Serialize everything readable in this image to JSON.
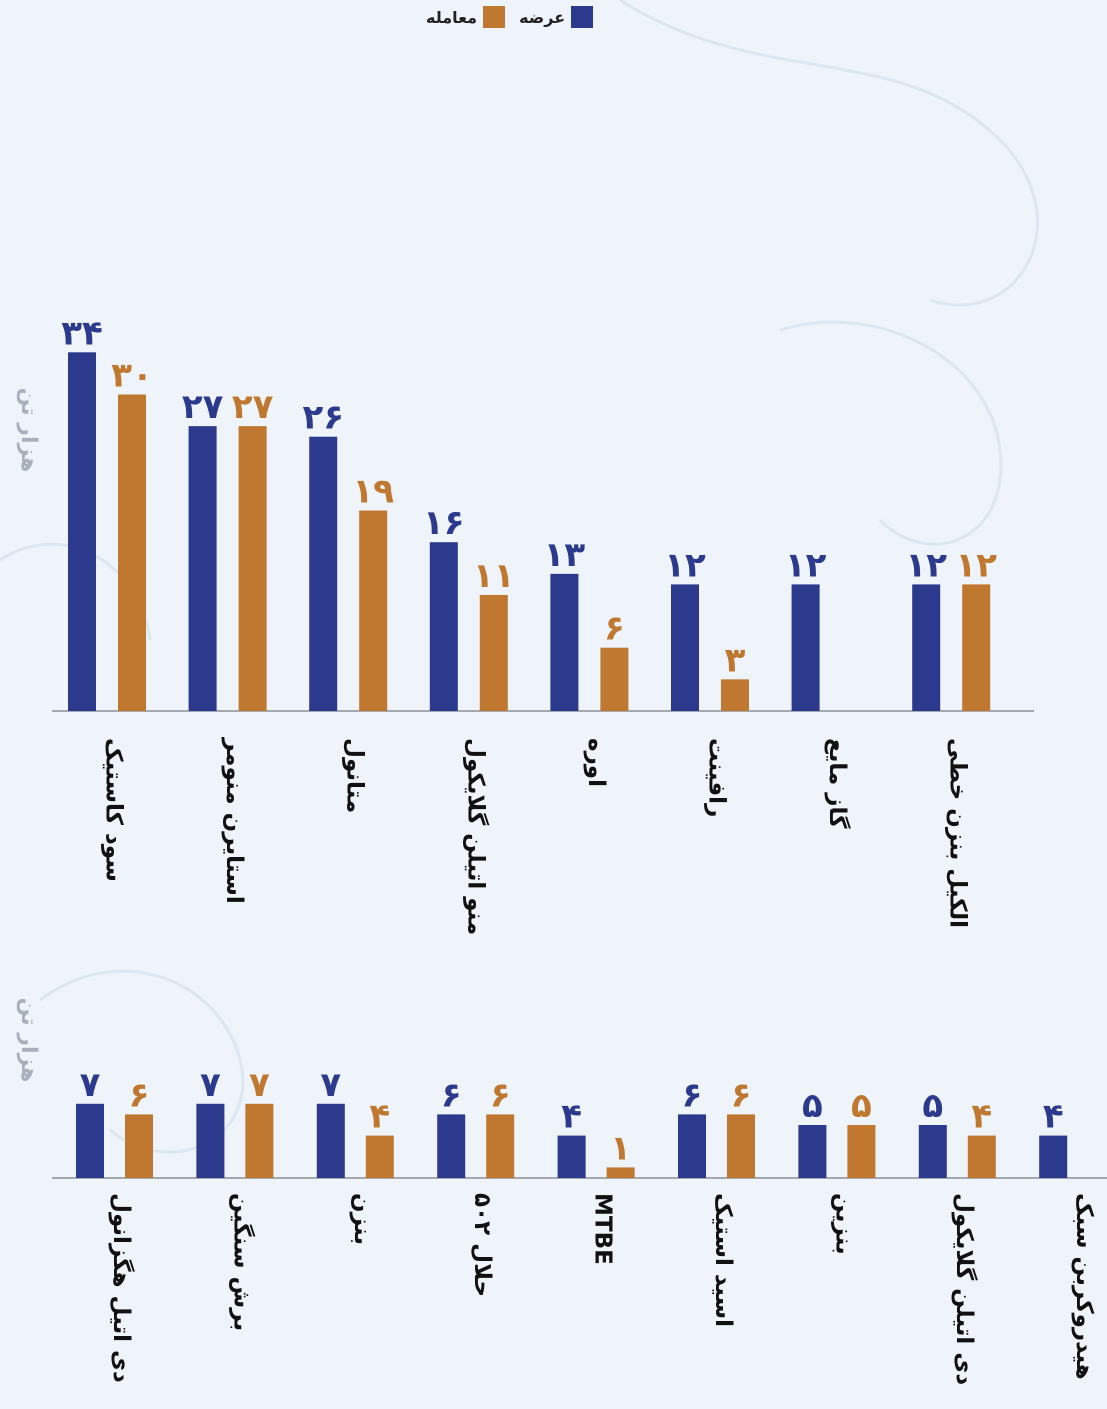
{
  "legend": {
    "supply_label": "عرضه",
    "trade_label": "معامله"
  },
  "colors": {
    "supply": "#2b3a8c",
    "trade": "#c0772f",
    "background": "#eef4f9",
    "axis": "#8a8f99"
  },
  "chart_data": [
    {
      "type": "bar",
      "ylabel": "هزار تن",
      "categories": [
        "سود کاستیک",
        "استایرن منومر",
        "متانول",
        "منو اتیلن گلایکول",
        "اوره",
        "رافینت",
        "گاز مایع",
        "الکیل بنزن خطی"
      ],
      "series": [
        {
          "name": "عرضه",
          "values": [
            34,
            27,
            26,
            16,
            13,
            12,
            12,
            12
          ],
          "labels": [
            "۳۴",
            "۲۷",
            "۲۶",
            "۱۶",
            "۱۳",
            "۱۲",
            "۱۲",
            "۱۲"
          ]
        },
        {
          "name": "معامله",
          "values": [
            30,
            27,
            19,
            11,
            6,
            3,
            0,
            12
          ],
          "labels": [
            "۳۰",
            "۲۷",
            "۱۹",
            "۱۱",
            "۶",
            "۳",
            "",
            "۱۲"
          ]
        }
      ]
    },
    {
      "type": "bar",
      "ylabel": "هزار تن",
      "categories": [
        "دی اتیل هگزانول",
        "برش سنگین",
        "بنزن",
        "حلال ۵۰۲",
        "MTBE",
        "اسید استیک",
        "بنزین",
        "دی اتیلن گلایکول",
        "هیدروکربن سبک"
      ],
      "series": [
        {
          "name": "عرضه",
          "values": [
            7,
            7,
            7,
            6,
            4,
            6,
            5,
            5,
            4
          ],
          "labels": [
            "۷",
            "۷",
            "۷",
            "۶",
            "۴",
            "۶",
            "۵",
            "۵",
            "۴"
          ]
        },
        {
          "name": "معامله",
          "values": [
            6,
            7,
            4,
            6,
            1,
            6,
            5,
            4,
            0
          ],
          "labels": [
            "۶",
            "۷",
            "۴",
            "۶",
            "۱",
            "۶",
            "۵",
            "۴",
            ""
          ]
        }
      ]
    }
  ]
}
